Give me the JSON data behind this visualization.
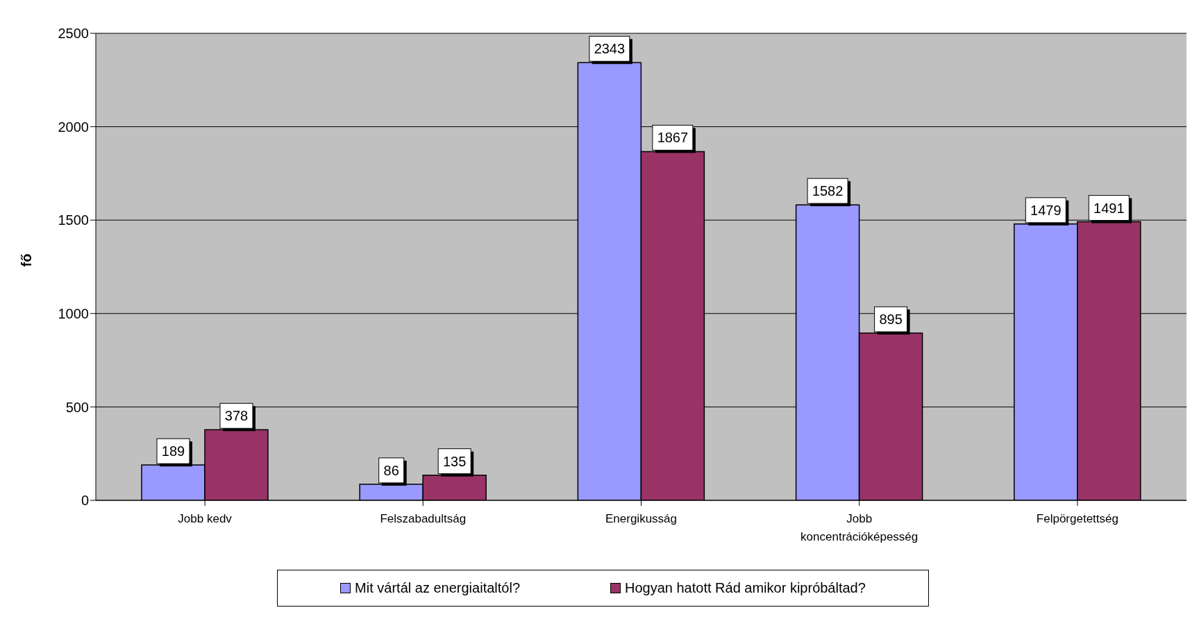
{
  "chart_data": {
    "type": "bar",
    "ylabel": "fő",
    "categories": [
      "Jobb kedv",
      "Felszabadultság",
      "Energikusság",
      "Jobb koncentrációképesség",
      "Felpörgetettség"
    ],
    "series": [
      {
        "name": "Mit vártál az energiaitaltól?",
        "color": "#9999ff",
        "values": [
          189,
          86,
          2343,
          1582,
          1479
        ]
      },
      {
        "name": "Hogyan hatott Rád amikor kipróbáltad?",
        "color": "#993366",
        "values": [
          378,
          135,
          1867,
          895,
          1491
        ]
      }
    ],
    "ylim": [
      0,
      2500
    ],
    "yticks": [
      0,
      500,
      1000,
      1500,
      2000,
      2500
    ],
    "grid": "y",
    "legend": "bottom",
    "data_labels": true
  }
}
